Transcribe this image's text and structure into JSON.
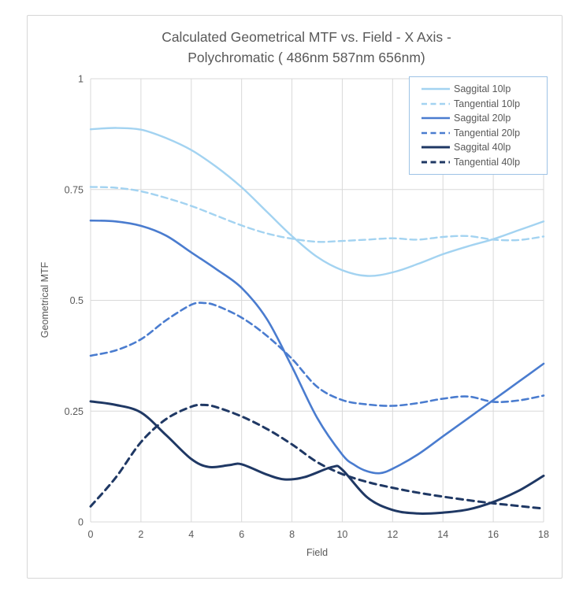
{
  "styles": {
    "text_color": "#595959",
    "grid_color": "#d9d9d9",
    "frame_border_color": "#d6d6d6",
    "legend_border_color": "#9dc3e6",
    "background": "#ffffff"
  },
  "chart_data": {
    "type": "line",
    "title": "Calculated Geometrical MTF vs. Field -  X Axis - Polychromatic ( 486nm 587nm 656nm)",
    "title_lines": [
      "Calculated Geometrical MTF vs. Field -  X Axis -",
      "Polychromatic ( 486nm 587nm 656nm)"
    ],
    "xlabel": "Field",
    "ylabel": "Geometrical MTF",
    "xlim": [
      0,
      18
    ],
    "ylim": [
      0,
      1
    ],
    "x_ticks": [
      0,
      2,
      4,
      6,
      8,
      10,
      12,
      14,
      16,
      18
    ],
    "y_ticks": [
      0,
      0.25,
      0.5,
      0.75,
      1
    ],
    "y_tick_labels": [
      "0",
      "0.25",
      "0.5",
      "0.75",
      "1"
    ],
    "grid": true,
    "legend_position": "top-right",
    "series": [
      {
        "name": "Saggital 10lp",
        "color": "#a3d3f1",
        "line_style": "solid",
        "stroke_width": 2.4,
        "points": [
          [
            0,
            0.886
          ],
          [
            1,
            0.889
          ],
          [
            2,
            0.885
          ],
          [
            3,
            0.866
          ],
          [
            4,
            0.839
          ],
          [
            5,
            0.801
          ],
          [
            6,
            0.755
          ],
          [
            7,
            0.7
          ],
          [
            8,
            0.645
          ],
          [
            9,
            0.598
          ],
          [
            10,
            0.568
          ],
          [
            11,
            0.555
          ],
          [
            12,
            0.563
          ],
          [
            13,
            0.582
          ],
          [
            14,
            0.604
          ],
          [
            15,
            0.622
          ],
          [
            16,
            0.638
          ],
          [
            17,
            0.658
          ],
          [
            18,
            0.678
          ]
        ]
      },
      {
        "name": "Tangential 10lp",
        "color": "#a3d3f1",
        "line_style": "dashed",
        "stroke_width": 2.4,
        "points": [
          [
            0,
            0.756
          ],
          [
            1,
            0.754
          ],
          [
            2,
            0.746
          ],
          [
            3,
            0.731
          ],
          [
            4,
            0.713
          ],
          [
            5,
            0.691
          ],
          [
            6,
            0.669
          ],
          [
            7,
            0.651
          ],
          [
            8,
            0.639
          ],
          [
            9,
            0.632
          ],
          [
            10,
            0.634
          ],
          [
            11,
            0.637
          ],
          [
            12,
            0.64
          ],
          [
            13,
            0.637
          ],
          [
            14,
            0.643
          ],
          [
            15,
            0.645
          ],
          [
            16,
            0.637
          ],
          [
            17,
            0.636
          ],
          [
            18,
            0.644
          ]
        ]
      },
      {
        "name": "Saggital 20lp",
        "color": "#4a7ccf",
        "line_style": "solid",
        "stroke_width": 2.6,
        "points": [
          [
            0,
            0.68
          ],
          [
            1,
            0.678
          ],
          [
            2,
            0.668
          ],
          [
            3,
            0.646
          ],
          [
            4,
            0.608
          ],
          [
            5,
            0.57
          ],
          [
            6,
            0.528
          ],
          [
            7,
            0.458
          ],
          [
            8,
            0.35
          ],
          [
            9,
            0.235
          ],
          [
            10,
            0.152
          ],
          [
            10.5,
            0.128
          ],
          [
            11,
            0.114
          ],
          [
            11.5,
            0.11
          ],
          [
            12,
            0.12
          ],
          [
            13,
            0.152
          ],
          [
            14,
            0.193
          ],
          [
            15,
            0.234
          ],
          [
            16,
            0.275
          ],
          [
            17,
            0.316
          ],
          [
            18,
            0.357
          ]
        ]
      },
      {
        "name": "Tangential 20lp",
        "color": "#4a7ccf",
        "line_style": "dashed",
        "stroke_width": 2.6,
        "points": [
          [
            0,
            0.375
          ],
          [
            1,
            0.387
          ],
          [
            2,
            0.412
          ],
          [
            3,
            0.455
          ],
          [
            4,
            0.49
          ],
          [
            4.5,
            0.494
          ],
          [
            5,
            0.488
          ],
          [
            6,
            0.461
          ],
          [
            7,
            0.42
          ],
          [
            8,
            0.368
          ],
          [
            9,
            0.305
          ],
          [
            10,
            0.275
          ],
          [
            11,
            0.265
          ],
          [
            12,
            0.262
          ],
          [
            13,
            0.268
          ],
          [
            14,
            0.278
          ],
          [
            15,
            0.283
          ],
          [
            16,
            0.271
          ],
          [
            17,
            0.274
          ],
          [
            18,
            0.285
          ]
        ]
      },
      {
        "name": "Saggital 40lp",
        "color": "#1f3864",
        "line_style": "solid",
        "stroke_width": 3,
        "points": [
          [
            0,
            0.272
          ],
          [
            1,
            0.264
          ],
          [
            2,
            0.247
          ],
          [
            3,
            0.196
          ],
          [
            4,
            0.142
          ],
          [
            4.7,
            0.124
          ],
          [
            5.5,
            0.128
          ],
          [
            6,
            0.13
          ],
          [
            7,
            0.107
          ],
          [
            7.7,
            0.096
          ],
          [
            8.5,
            0.101
          ],
          [
            9.6,
            0.124
          ],
          [
            10,
            0.118
          ],
          [
            11,
            0.055
          ],
          [
            12,
            0.027
          ],
          [
            13,
            0.019
          ],
          [
            14,
            0.021
          ],
          [
            15,
            0.028
          ],
          [
            16,
            0.045
          ],
          [
            17,
            0.07
          ],
          [
            18,
            0.104
          ]
        ]
      },
      {
        "name": "Tangential 40lp",
        "color": "#1f3864",
        "line_style": "dashed",
        "stroke_width": 3,
        "points": [
          [
            0,
            0.035
          ],
          [
            1,
            0.1
          ],
          [
            2,
            0.18
          ],
          [
            3,
            0.232
          ],
          [
            4,
            0.26
          ],
          [
            4.5,
            0.264
          ],
          [
            5,
            0.259
          ],
          [
            6,
            0.238
          ],
          [
            7,
            0.21
          ],
          [
            8,
            0.175
          ],
          [
            9,
            0.135
          ],
          [
            10,
            0.108
          ],
          [
            11,
            0.09
          ],
          [
            12,
            0.077
          ],
          [
            13,
            0.066
          ],
          [
            14,
            0.057
          ],
          [
            15,
            0.049
          ],
          [
            16,
            0.042
          ],
          [
            17,
            0.036
          ],
          [
            18,
            0.03
          ]
        ]
      }
    ]
  }
}
